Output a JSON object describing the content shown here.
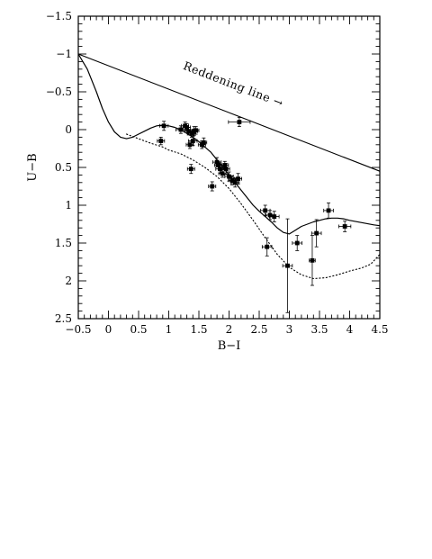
{
  "chart_data": {
    "type": "scatter",
    "title": "",
    "xlabel": "B−I",
    "ylabel": "U−B",
    "xlim": [
      -0.5,
      4.5
    ],
    "ylim": [
      -1.5,
      2.5
    ],
    "y_inverted": true,
    "x_ticks": [
      "−0.5",
      "0",
      "0.5",
      "1",
      "1.5",
      "2",
      "2.5",
      "3",
      "3.5",
      "4",
      "4.5"
    ],
    "y_ticks": [
      "−1.5",
      "−1",
      "−0.5",
      "0",
      "0.5",
      "1",
      "1.5",
      "2",
      "2.5"
    ],
    "grid": false,
    "annotations": [
      {
        "text": "Reddening line →",
        "anchor_x": 2.05,
        "anchor_y": -0.55
      }
    ],
    "reddening_line": {
      "x": [
        -0.5,
        4.5
      ],
      "y": [
        -1.0,
        0.55
      ]
    },
    "solid_curve": {
      "x": [
        -0.5,
        -0.35,
        -0.2,
        -0.1,
        0.0,
        0.1,
        0.2,
        0.3,
        0.4,
        0.5,
        0.6,
        0.7,
        0.8,
        0.9,
        1.0,
        1.1,
        1.2,
        1.3,
        1.4,
        1.5,
        1.6,
        1.7,
        1.8,
        1.9,
        2.0,
        2.1,
        2.2,
        2.3,
        2.4,
        2.5,
        2.6,
        2.7,
        2.8,
        2.9,
        3.0,
        3.1,
        3.2,
        3.3,
        3.4,
        3.5,
        3.6,
        3.7,
        3.8,
        3.9,
        4.0,
        4.2,
        4.4,
        4.5
      ],
      "y": [
        -1.0,
        -0.8,
        -0.5,
        -0.28,
        -0.1,
        0.03,
        0.1,
        0.12,
        0.1,
        0.06,
        0.02,
        -0.02,
        -0.05,
        -0.06,
        -0.05,
        -0.03,
        0.0,
        0.05,
        0.1,
        0.16,
        0.23,
        0.3,
        0.4,
        0.5,
        0.6,
        0.7,
        0.8,
        0.9,
        1.0,
        1.08,
        1.15,
        1.22,
        1.3,
        1.36,
        1.38,
        1.33,
        1.28,
        1.25,
        1.22,
        1.2,
        1.18,
        1.17,
        1.17,
        1.18,
        1.2,
        1.23,
        1.26,
        1.27
      ]
    },
    "dotted_curve": {
      "x": [
        0.3,
        0.5,
        0.7,
        0.9,
        1.0,
        1.2,
        1.4,
        1.6,
        1.8,
        2.0,
        2.2,
        2.4,
        2.6,
        2.8,
        3.0,
        3.2,
        3.4,
        3.6,
        3.8,
        4.0,
        4.2,
        4.35,
        4.5
      ],
      "y": [
        0.06,
        0.12,
        0.18,
        0.23,
        0.27,
        0.32,
        0.4,
        0.5,
        0.62,
        0.78,
        0.98,
        1.2,
        1.43,
        1.65,
        1.82,
        1.92,
        1.97,
        1.96,
        1.92,
        1.87,
        1.83,
        1.78,
        1.65
      ]
    },
    "series": [
      {
        "type": "scatter",
        "points": [
          {
            "x": 0.92,
            "y": -0.05,
            "xerr": 0.07,
            "yerr": 0.06
          },
          {
            "x": 0.87,
            "y": 0.15,
            "xerr": 0.06,
            "yerr": 0.05
          },
          {
            "x": 1.2,
            "y": 0.0,
            "xerr": 0.08,
            "yerr": 0.05
          },
          {
            "x": 1.27,
            "y": -0.05,
            "xerr": 0.06,
            "yerr": 0.05
          },
          {
            "x": 1.3,
            "y": -0.03,
            "xerr": 0.06,
            "yerr": 0.05
          },
          {
            "x": 1.33,
            "y": 0.02,
            "xerr": 0.07,
            "yerr": 0.05
          },
          {
            "x": 1.38,
            "y": 0.05,
            "xerr": 0.06,
            "yerr": 0.05
          },
          {
            "x": 1.42,
            "y": 0.02,
            "xerr": 0.06,
            "yerr": 0.06
          },
          {
            "x": 1.45,
            "y": 0.01,
            "xerr": 0.05,
            "yerr": 0.05
          },
          {
            "x": 1.4,
            "y": 0.15,
            "xerr": 0.07,
            "yerr": 0.06
          },
          {
            "x": 1.35,
            "y": 0.2,
            "xerr": 0.06,
            "yerr": 0.05
          },
          {
            "x": 1.58,
            "y": 0.17,
            "xerr": 0.05,
            "yerr": 0.06
          },
          {
            "x": 1.55,
            "y": 0.2,
            "xerr": 0.06,
            "yerr": 0.05
          },
          {
            "x": 1.37,
            "y": 0.52,
            "xerr": 0.06,
            "yerr": 0.06
          },
          {
            "x": 2.17,
            "y": -0.1,
            "xerr": 0.18,
            "yerr": 0.06
          },
          {
            "x": 1.8,
            "y": 0.43,
            "xerr": 0.07,
            "yerr": 0.06
          },
          {
            "x": 1.82,
            "y": 0.47,
            "xerr": 0.06,
            "yerr": 0.05
          },
          {
            "x": 1.85,
            "y": 0.52,
            "xerr": 0.07,
            "yerr": 0.06
          },
          {
            "x": 1.93,
            "y": 0.47,
            "xerr": 0.06,
            "yerr": 0.05
          },
          {
            "x": 1.95,
            "y": 0.52,
            "xerr": 0.06,
            "yerr": 0.07
          },
          {
            "x": 1.89,
            "y": 0.58,
            "xerr": 0.06,
            "yerr": 0.05
          },
          {
            "x": 2.0,
            "y": 0.62,
            "xerr": 0.07,
            "yerr": 0.06
          },
          {
            "x": 2.05,
            "y": 0.67,
            "xerr": 0.06,
            "yerr": 0.06
          },
          {
            "x": 2.1,
            "y": 0.7,
            "xerr": 0.07,
            "yerr": 0.06
          },
          {
            "x": 2.15,
            "y": 0.65,
            "xerr": 0.06,
            "yerr": 0.07
          },
          {
            "x": 1.72,
            "y": 0.75,
            "xerr": 0.06,
            "yerr": 0.06
          },
          {
            "x": 2.6,
            "y": 1.07,
            "xerr": 0.08,
            "yerr": 0.07
          },
          {
            "x": 2.68,
            "y": 1.13,
            "xerr": 0.07,
            "yerr": 0.06
          },
          {
            "x": 2.75,
            "y": 1.15,
            "xerr": 0.08,
            "yerr": 0.07
          },
          {
            "x": 3.65,
            "y": 1.07,
            "xerr": 0.08,
            "yerr": 0.1
          },
          {
            "x": 3.92,
            "y": 1.28,
            "xerr": 0.1,
            "yerr": 0.07
          },
          {
            "x": 3.45,
            "y": 1.37,
            "xerr": 0.08,
            "yerr": 0.18
          },
          {
            "x": 2.63,
            "y": 1.55,
            "xerr": 0.08,
            "yerr": 0.12
          },
          {
            "x": 3.13,
            "y": 1.5,
            "xerr": 0.08,
            "yerr": 0.1
          },
          {
            "x": 2.97,
            "y": 1.8,
            "xerr": 0.08,
            "yerr": 0.62
          },
          {
            "x": 3.38,
            "y": 1.73,
            "xerr": 0.05,
            "yerr": 0.33
          }
        ]
      }
    ]
  }
}
